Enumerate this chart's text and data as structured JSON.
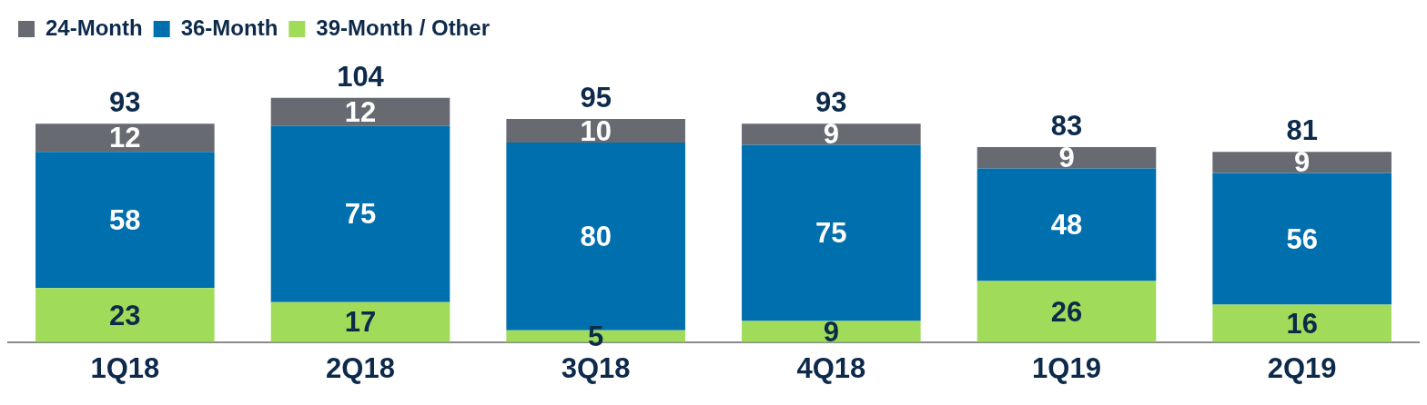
{
  "chart_data": {
    "type": "bar",
    "stacked": true,
    "legend": "top left",
    "data_labels": true,
    "categories": [
      "1Q18",
      "2Q18",
      "3Q18",
      "4Q18",
      "1Q19",
      "2Q19"
    ],
    "series": [
      {
        "name": "39-Month / Other",
        "color": "#a0dc5a",
        "values": [
          23,
          17,
          5,
          9,
          26,
          16
        ]
      },
      {
        "name": "36-Month",
        "color": "#006fae",
        "values": [
          58,
          75,
          80,
          75,
          48,
          56
        ]
      },
      {
        "name": "24-Month",
        "color": "#686a72",
        "values": [
          12,
          12,
          10,
          9,
          9,
          9
        ]
      }
    ],
    "totals": [
      "93",
      "104",
      "95",
      "93",
      "83",
      "81"
    ]
  }
}
